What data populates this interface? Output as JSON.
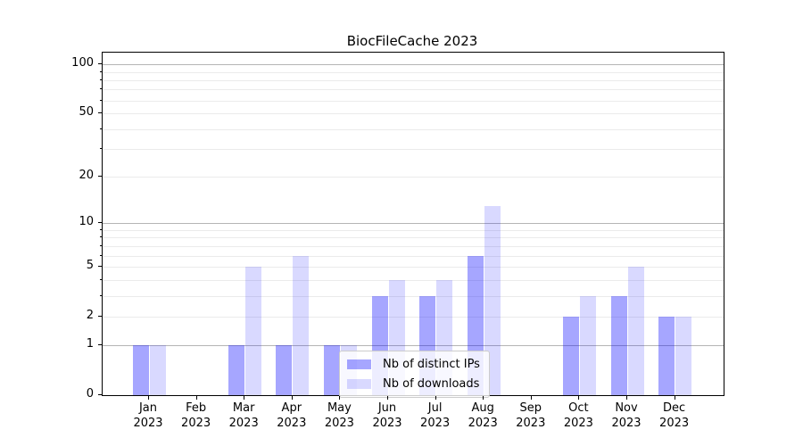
{
  "title": "BiocFileCache 2023",
  "chart_data": {
    "type": "bar",
    "title": "BiocFileCache 2023",
    "categories": [
      "Jan 2023",
      "Feb 2023",
      "Mar 2023",
      "Apr 2023",
      "May 2023",
      "Jun 2023",
      "Jul 2023",
      "Aug 2023",
      "Sep 2023",
      "Oct 2023",
      "Nov 2023",
      "Dec 2023"
    ],
    "series": [
      {
        "name": "Nb of distinct IPs",
        "color": "#0000ff",
        "alpha": 0.35,
        "rendered_color": "#a6a6ff",
        "values": [
          1,
          0,
          1,
          1,
          1,
          3,
          3,
          6,
          0,
          2,
          3,
          2
        ]
      },
      {
        "name": "Nb of downloads",
        "color": "#0000ff",
        "alpha": 0.15,
        "rendered_color": "#d9d9ff",
        "values": [
          1,
          0,
          5,
          6,
          1,
          4,
          4,
          13,
          0,
          3,
          5,
          2
        ]
      }
    ],
    "y_scale": "log1p",
    "ylim": [
      0,
      118
    ],
    "y_tick_values": [
      0,
      1,
      2,
      5,
      10,
      20,
      50,
      100
    ],
    "y_tick_labels": [
      "0",
      "1",
      "2",
      "5",
      "10",
      "20",
      "50",
      "100"
    ],
    "y_major_gridlines": [
      1,
      10,
      100
    ],
    "y_minor_gridlines": [
      2,
      3,
      4,
      5,
      6,
      7,
      8,
      9,
      20,
      30,
      40,
      50,
      60,
      70,
      80,
      90
    ],
    "grid": true,
    "legend_position": "lower-center",
    "colors": {
      "major_grid": "#b5b5b5",
      "minor_grid": "#ebebeb",
      "spine": "#000000",
      "text": "#000000",
      "legend_border": "#cccccc"
    }
  }
}
